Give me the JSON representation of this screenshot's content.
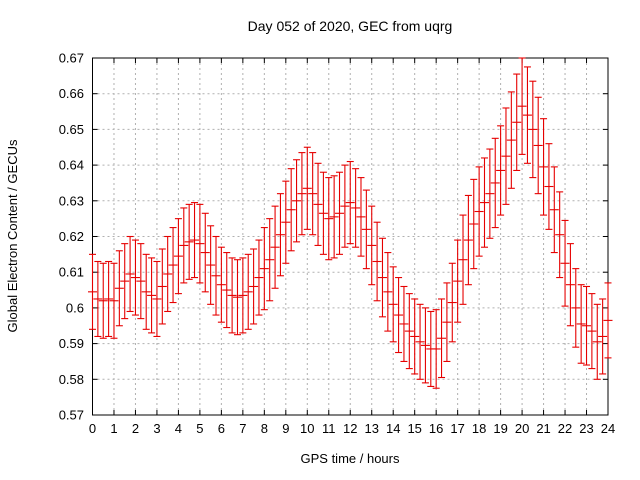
{
  "chart_data": {
    "type": "line",
    "title": "Day 052 of 2020, GEC from uqrg",
    "xlabel": "GPS time / hours",
    "ylabel": "Global Electron Content / GECUs",
    "series_style": "yerrorbars",
    "series_color": "#e60000",
    "grid": "dashed-gray",
    "legend": "none",
    "xlim": [
      0,
      24
    ],
    "ylim": [
      0.57,
      0.67
    ],
    "x_ticks": {
      "values": [
        0,
        1,
        2,
        3,
        4,
        5,
        6,
        7,
        8,
        9,
        10,
        11,
        12,
        13,
        14,
        15,
        16,
        17,
        18,
        19,
        20,
        21,
        22,
        23,
        24
      ],
      "labels": [
        "0",
        "1",
        "2",
        "3",
        "4",
        "5",
        "6",
        "7",
        "8",
        "9",
        "10",
        "11",
        "12",
        "13",
        "14",
        "15",
        "16",
        "17",
        "18",
        "19",
        "20",
        "21",
        "22",
        "23",
        "24"
      ]
    },
    "y_ticks": {
      "values": [
        0.57,
        0.58,
        0.59,
        0.6,
        0.61,
        0.62,
        0.63,
        0.64,
        0.65,
        0.66,
        0.67
      ],
      "labels": [
        "0.57",
        "0.58",
        "0.59",
        "0.6",
        "0.61",
        "0.62",
        "0.63",
        "0.64",
        "0.65",
        "0.66",
        "0.67"
      ]
    },
    "x": [
      0,
      0.25,
      0.5,
      0.75,
      1,
      1.25,
      1.5,
      1.75,
      2,
      2.25,
      2.5,
      2.75,
      3,
      3.25,
      3.5,
      3.75,
      4,
      4.25,
      4.5,
      4.75,
      5,
      5.25,
      5.5,
      5.75,
      6,
      6.25,
      6.5,
      6.75,
      7,
      7.25,
      7.5,
      7.75,
      8,
      8.25,
      8.5,
      8.75,
      9,
      9.25,
      9.5,
      9.75,
      10,
      10.25,
      10.5,
      10.75,
      11,
      11.25,
      11.5,
      11.75,
      12,
      12.25,
      12.5,
      12.75,
      13,
      13.25,
      13.5,
      13.75,
      14,
      14.25,
      14.5,
      14.75,
      15,
      15.25,
      15.5,
      15.75,
      16,
      16.25,
      16.5,
      16.75,
      17,
      17.25,
      17.5,
      17.75,
      18,
      18.25,
      18.5,
      18.75,
      19,
      19.25,
      19.5,
      19.75,
      20,
      20.25,
      20.5,
      20.75,
      21,
      21.25,
      21.5,
      21.75,
      22,
      22.25,
      22.5,
      22.75,
      23,
      23.25,
      23.5,
      23.75,
      24
    ],
    "values": [
      0.6045,
      0.6025,
      0.602,
      0.6025,
      0.602,
      0.6055,
      0.6075,
      0.6095,
      0.6085,
      0.6075,
      0.6045,
      0.6035,
      0.6025,
      0.606,
      0.6095,
      0.612,
      0.6145,
      0.6175,
      0.6185,
      0.619,
      0.618,
      0.6155,
      0.612,
      0.609,
      0.6065,
      0.605,
      0.6035,
      0.603,
      0.6035,
      0.6045,
      0.606,
      0.6085,
      0.611,
      0.6135,
      0.617,
      0.6205,
      0.624,
      0.6275,
      0.63,
      0.632,
      0.6335,
      0.632,
      0.629,
      0.6265,
      0.625,
      0.6255,
      0.6265,
      0.6285,
      0.6295,
      0.628,
      0.6255,
      0.622,
      0.6175,
      0.613,
      0.6085,
      0.6045,
      0.601,
      0.598,
      0.5955,
      0.5935,
      0.592,
      0.5905,
      0.5895,
      0.5885,
      0.5885,
      0.5915,
      0.596,
      0.6015,
      0.6075,
      0.6135,
      0.619,
      0.6235,
      0.627,
      0.6295,
      0.632,
      0.635,
      0.6385,
      0.6425,
      0.647,
      0.652,
      0.6565,
      0.654,
      0.65,
      0.6455,
      0.6395,
      0.634,
      0.6275,
      0.6205,
      0.6125,
      0.6065,
      0.6,
      0.5955,
      0.595,
      0.5935,
      0.5905,
      0.592,
      0.5965
    ],
    "errors": [
      0.0105,
      0.0105,
      0.0105,
      0.0105,
      0.0105,
      0.0105,
      0.0105,
      0.0105,
      0.0105,
      0.0105,
      0.0105,
      0.0105,
      0.0105,
      0.0105,
      0.0105,
      0.0105,
      0.0105,
      0.0105,
      0.0105,
      0.0105,
      0.011,
      0.011,
      0.011,
      0.011,
      0.0105,
      0.0105,
      0.0105,
      0.0105,
      0.0105,
      0.0105,
      0.0105,
      0.0105,
      0.0115,
      0.0115,
      0.0115,
      0.0115,
      0.0115,
      0.0115,
      0.0115,
      0.0115,
      0.0115,
      0.0115,
      0.0115,
      0.0115,
      0.0115,
      0.0115,
      0.0115,
      0.0115,
      0.0115,
      0.011,
      0.011,
      0.011,
      0.011,
      0.011,
      0.011,
      0.011,
      0.0105,
      0.0105,
      0.0105,
      0.0105,
      0.0105,
      0.0105,
      0.0105,
      0.0105,
      0.011,
      0.011,
      0.011,
      0.011,
      0.0115,
      0.0125,
      0.0125,
      0.0125,
      0.0125,
      0.0125,
      0.0125,
      0.0125,
      0.0125,
      0.0135,
      0.0135,
      0.0135,
      0.0135,
      0.0135,
      0.0135,
      0.0135,
      0.0135,
      0.012,
      0.012,
      0.012,
      0.012,
      0.0115,
      0.011,
      0.011,
      0.011,
      0.0105,
      0.0105,
      0.0105,
      0.0105
    ]
  }
}
